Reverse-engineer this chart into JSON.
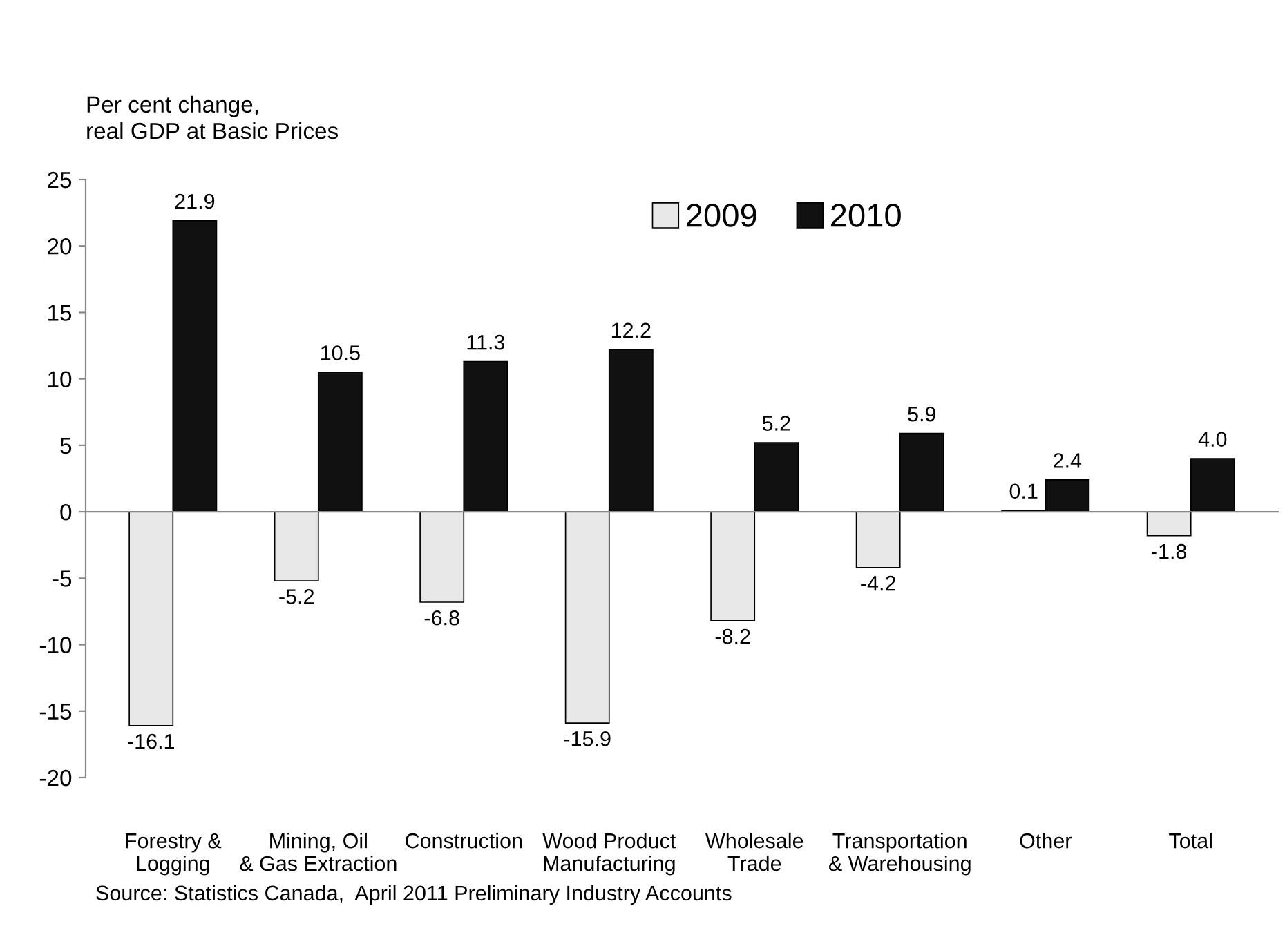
{
  "chart_data": {
    "type": "bar",
    "ylabel": "Per cent change,\nreal GDP at Basic Prices",
    "categories": [
      "Forestry &\nLogging",
      "Mining, Oil\n& Gas Extraction",
      "Construction",
      "Wood Product\nManufacturing",
      "Wholesale\nTrade",
      "Transportation\n& Warehousing",
      "Other",
      "Total"
    ],
    "series": [
      {
        "name": "2009",
        "color": "#e8e8e8",
        "values": [
          -16.1,
          -5.2,
          -6.8,
          -15.9,
          -8.2,
          -4.2,
          0.1,
          -1.8
        ],
        "value_labels": [
          "-16.1",
          "-5.2",
          "-6.8",
          "-15.9",
          "-8.2",
          "-4.2",
          "0.1",
          "-1.8"
        ]
      },
      {
        "name": "2010",
        "color": "#111111",
        "values": [
          21.9,
          10.5,
          11.3,
          12.2,
          5.2,
          5.9,
          2.4,
          4.0
        ],
        "value_labels": [
          "21.9",
          "10.5",
          "11.3",
          "12.2",
          "5.2",
          "5.9",
          "2.4",
          "4.0"
        ]
      }
    ],
    "ylim": [
      -20,
      25
    ],
    "yticks": [
      -20,
      -15,
      -10,
      -5,
      0,
      5,
      10,
      15,
      20,
      25
    ],
    "legend": "top",
    "annotations": [
      "Source: Statistics Canada,  April 2011 Preliminary Industry Accounts"
    ]
  }
}
